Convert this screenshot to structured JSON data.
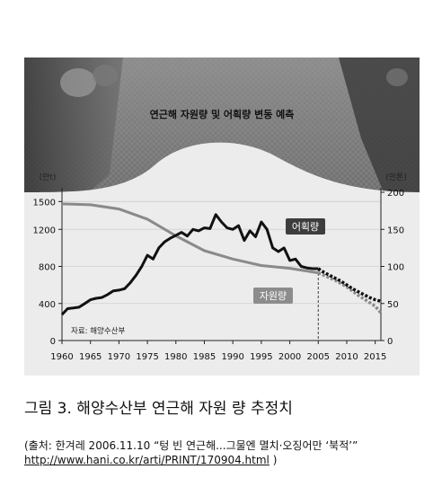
{
  "chart_data": {
    "type": "line",
    "title": "연근해 자원량 및 어획량 변동 예측",
    "left_unit": "(만t)",
    "right_unit": "(만톤)",
    "x_ticks": [
      1960,
      1965,
      1970,
      1975,
      1980,
      1985,
      1990,
      1995,
      2000,
      2005,
      2010,
      2015
    ],
    "left_ticks": [
      0,
      400,
      800,
      1200,
      1500
    ],
    "right_ticks": [
      0,
      50,
      100,
      150,
      200
    ],
    "xlim": [
      1960,
      2016
    ],
    "left_ylim": [
      0,
      1600
    ],
    "right_ylim": [
      0,
      200
    ],
    "source_note": "자료: 해양수산부",
    "colors": {
      "catch": "#111111",
      "stock": "#8a8a8a",
      "panel": "#ececec",
      "photo": "#5c5c5c"
    },
    "series": [
      {
        "name": "어획량",
        "axis": "right",
        "x": [
          1960,
          1961,
          1962,
          1963,
          1964,
          1965,
          1966,
          1967,
          1968,
          1969,
          1970,
          1971,
          1972,
          1973,
          1974,
          1975,
          1976,
          1977,
          1978,
          1979,
          1980,
          1981,
          1982,
          1983,
          1984,
          1985,
          1986,
          1987,
          1988,
          1989,
          1990,
          1991,
          1992,
          1993,
          1994,
          1995,
          1996,
          1997,
          1998,
          1999,
          2000,
          2001,
          2002,
          2003,
          2004,
          2005
        ],
        "values": [
          35,
          43,
          44,
          45,
          50,
          55,
          57,
          58,
          62,
          67,
          68,
          70,
          78,
          88,
          100,
          115,
          110,
          125,
          133,
          138,
          142,
          146,
          141,
          150,
          148,
          152,
          151,
          170,
          160,
          152,
          150,
          155,
          135,
          148,
          140,
          160,
          150,
          125,
          120,
          125,
          108,
          110,
          100,
          98,
          97,
          97
        ]
      },
      {
        "name": "어획량 (예측)",
        "axis": "right",
        "x": [
          2005,
          2006,
          2007,
          2008,
          2009,
          2010,
          2011,
          2012,
          2013,
          2014,
          2015,
          2016
        ],
        "values": [
          97,
          92,
          88,
          84,
          80,
          75,
          70,
          66,
          62,
          58,
          55,
          53
        ]
      },
      {
        "name": "자원량",
        "axis": "left",
        "x": [
          1960,
          1965,
          1970,
          1975,
          1980,
          1985,
          1990,
          1995,
          2000,
          2005
        ],
        "values": [
          1475,
          1465,
          1420,
          1310,
          1130,
          970,
          880,
          810,
          780,
          730
        ]
      },
      {
        "name": "자원량 (예측)",
        "axis": "left",
        "x": [
          2005,
          2008,
          2010,
          2012,
          2015,
          2016
        ],
        "values": [
          730,
          650,
          580,
          490,
          370,
          300
        ]
      }
    ]
  },
  "labels": {
    "catch": "어획량",
    "stock": "자원량"
  },
  "caption": "그림 3. 해양수산부 연근해 자원 량 추정치",
  "source_line": "(출처:  한겨레 2006.11.10 “텅 빈 연근해...그물엔 멸치·오징어만 ‘북적’”",
  "source_url": "http://www.hani.co.kr/arti/PRINT/170904.html",
  "source_close": " )"
}
